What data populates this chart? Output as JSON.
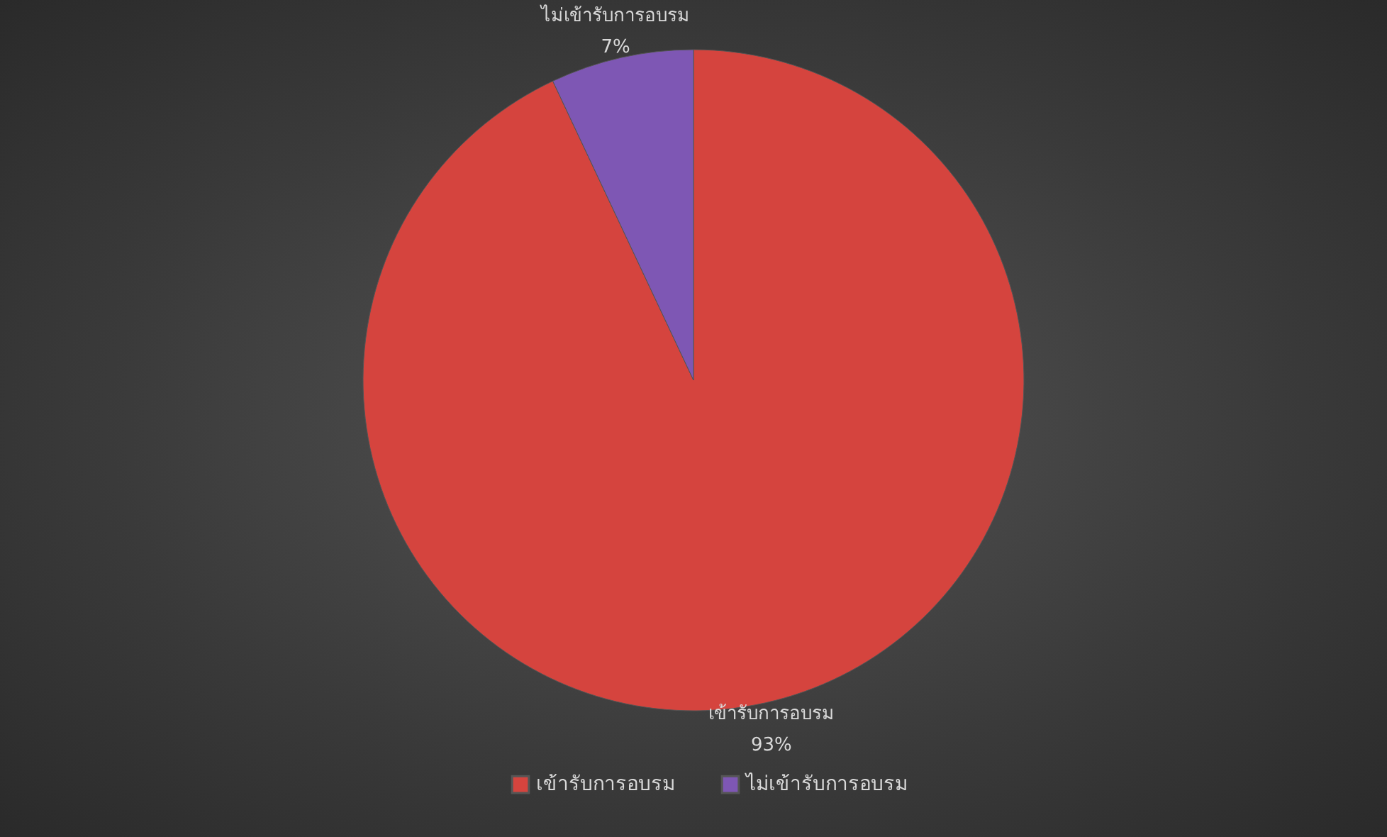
{
  "chart_data": {
    "type": "pie",
    "categories": [
      "เข้ารับการอบรม",
      "ไม่เข้ารับการอบรม"
    ],
    "values": [
      93,
      7
    ],
    "colors": [
      "#d5443e",
      "#7e57b4"
    ],
    "value_labels": [
      "93%",
      "7%"
    ],
    "legend": "bottom"
  }
}
